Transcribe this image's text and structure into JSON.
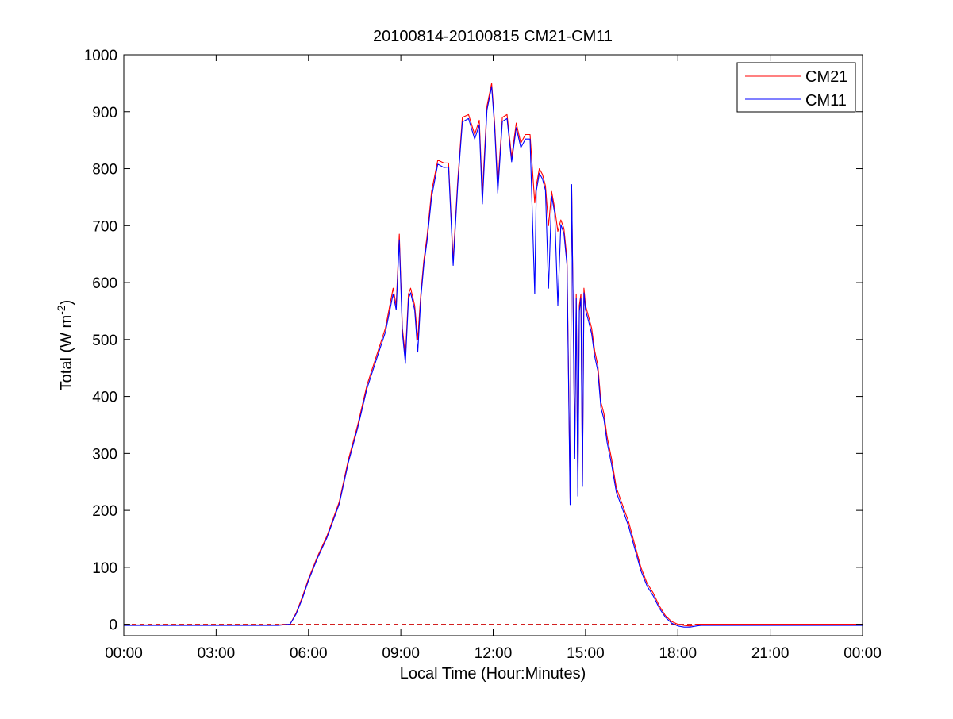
{
  "chart_data": {
    "type": "line",
    "title": "20100814-20100815 CM21-CM11",
    "xlabel": "Local Time (Hour:Minutes)",
    "ylabel": {
      "main": "Total (W m",
      "superscript": "-2",
      "close": ")"
    },
    "x_unit": "hours",
    "xlim": [
      0,
      24
    ],
    "ylim": [
      -20,
      1000
    ],
    "x_ticks": [
      0,
      3,
      6,
      9,
      12,
      15,
      18,
      21,
      24
    ],
    "x_tick_labels": [
      "00:00",
      "03:00",
      "06:00",
      "09:00",
      "12:00",
      "15:00",
      "18:00",
      "21:00",
      "00:00"
    ],
    "y_ticks": [
      0,
      100,
      200,
      300,
      400,
      500,
      600,
      700,
      800,
      900,
      1000
    ],
    "y_tick_labels": [
      "0",
      "100",
      "200",
      "300",
      "400",
      "500",
      "600",
      "700",
      "800",
      "900",
      "1000"
    ],
    "grid": false,
    "legend_position": "top-right",
    "reference_line": {
      "y": 0,
      "style": "dashed",
      "color": "#cc0000"
    },
    "series": [
      {
        "name": "CM21",
        "color": "#ff0000",
        "x": [
          0.0,
          1.0,
          2.0,
          3.0,
          4.0,
          5.0,
          5.4,
          5.6,
          5.8,
          6.0,
          6.3,
          6.6,
          7.0,
          7.3,
          7.6,
          7.9,
          8.2,
          8.5,
          8.75,
          8.85,
          8.95,
          9.05,
          9.15,
          9.25,
          9.32,
          9.45,
          9.55,
          9.65,
          9.75,
          9.85,
          10.0,
          10.2,
          10.4,
          10.55,
          10.7,
          10.85,
          11.0,
          11.2,
          11.4,
          11.55,
          11.65,
          11.8,
          11.95,
          12.05,
          12.15,
          12.3,
          12.45,
          12.6,
          12.75,
          12.9,
          13.05,
          13.2,
          13.35,
          13.4,
          13.5,
          13.6,
          13.7,
          13.8,
          13.9,
          14.0,
          14.1,
          14.2,
          14.3,
          14.4,
          14.5,
          14.55,
          14.6,
          14.65,
          14.7,
          14.75,
          14.8,
          14.85,
          14.9,
          14.95,
          15.0,
          15.05,
          15.1,
          15.2,
          15.3,
          15.4,
          15.5,
          15.6,
          15.7,
          15.85,
          16.0,
          16.2,
          16.4,
          16.6,
          16.8,
          17.0,
          17.2,
          17.4,
          17.6,
          17.8,
          18.0,
          18.2,
          18.4,
          18.6,
          18.75,
          18.9,
          19.2,
          20.0,
          21.0,
          22.0,
          23.0,
          24.0
        ],
        "values": [
          -1,
          -1,
          -1,
          -1,
          -1,
          -1,
          0,
          20,
          48,
          80,
          120,
          155,
          215,
          290,
          350,
          420,
          470,
          520,
          590,
          560,
          685,
          520,
          470,
          580,
          590,
          560,
          500,
          580,
          640,
          680,
          760,
          815,
          810,
          810,
          640,
          780,
          890,
          895,
          860,
          885,
          755,
          910,
          950,
          880,
          770,
          890,
          895,
          820,
          880,
          845,
          860,
          860,
          740,
          770,
          800,
          790,
          770,
          700,
          760,
          730,
          690,
          710,
          695,
          640,
          220,
          770,
          550,
          300,
          580,
          240,
          560,
          580,
          250,
          590,
          560,
          550,
          540,
          520,
          480,
          455,
          390,
          370,
          330,
          290,
          240,
          210,
          180,
          140,
          100,
          72,
          55,
          32,
          15,
          5,
          0,
          -2,
          -3,
          0,
          0,
          0,
          0,
          0,
          0,
          0,
          0,
          0
        ],
        "values_note": ""
      },
      {
        "name": "CM11",
        "color": "#0000ff",
        "x": [
          0.0,
          1.0,
          2.0,
          3.0,
          4.0,
          5.0,
          5.4,
          5.6,
          5.8,
          6.0,
          6.3,
          6.6,
          7.0,
          7.3,
          7.6,
          7.9,
          8.2,
          8.5,
          8.75,
          8.85,
          8.95,
          9.05,
          9.15,
          9.25,
          9.32,
          9.45,
          9.55,
          9.65,
          9.75,
          9.85,
          10.0,
          10.2,
          10.4,
          10.55,
          10.7,
          10.85,
          11.0,
          11.2,
          11.4,
          11.55,
          11.65,
          11.8,
          11.95,
          12.05,
          12.15,
          12.3,
          12.45,
          12.6,
          12.75,
          12.9,
          13.05,
          13.2,
          13.35,
          13.4,
          13.5,
          13.6,
          13.7,
          13.8,
          13.9,
          14.0,
          14.1,
          14.2,
          14.3,
          14.4,
          14.5,
          14.55,
          14.6,
          14.65,
          14.7,
          14.75,
          14.8,
          14.85,
          14.9,
          14.95,
          15.0,
          15.05,
          15.1,
          15.2,
          15.3,
          15.4,
          15.5,
          15.6,
          15.7,
          15.85,
          16.0,
          16.2,
          16.4,
          16.6,
          16.8,
          17.0,
          17.2,
          17.4,
          17.6,
          17.8,
          18.0,
          18.2,
          18.4,
          18.6,
          18.75,
          18.9,
          19.2,
          20.0,
          21.0,
          22.0,
          23.0,
          24.0
        ],
        "values": [
          -2,
          -2,
          -2,
          -2,
          -2,
          -2,
          0,
          18,
          45,
          77,
          117,
          152,
          211,
          285,
          345,
          414,
          464,
          513,
          580,
          552,
          675,
          512,
          458,
          572,
          582,
          552,
          478,
          572,
          632,
          672,
          750,
          808,
          802,
          803,
          630,
          772,
          882,
          888,
          852,
          877,
          738,
          903,
          944,
          872,
          757,
          883,
          888,
          812,
          872,
          837,
          852,
          852,
          580,
          760,
          792,
          782,
          762,
          590,
          752,
          722,
          560,
          702,
          686,
          630,
          210,
          772,
          540,
          290,
          572,
          225,
          550,
          572,
          242,
          582,
          552,
          542,
          532,
          510,
          470,
          445,
          380,
          360,
          320,
          280,
          232,
          203,
          172,
          133,
          94,
          67,
          50,
          28,
          12,
          2,
          -3,
          -5,
          -5,
          -3,
          -2,
          -2,
          -2,
          -2,
          -2,
          -2,
          -2,
          -2
        ]
      }
    ]
  }
}
